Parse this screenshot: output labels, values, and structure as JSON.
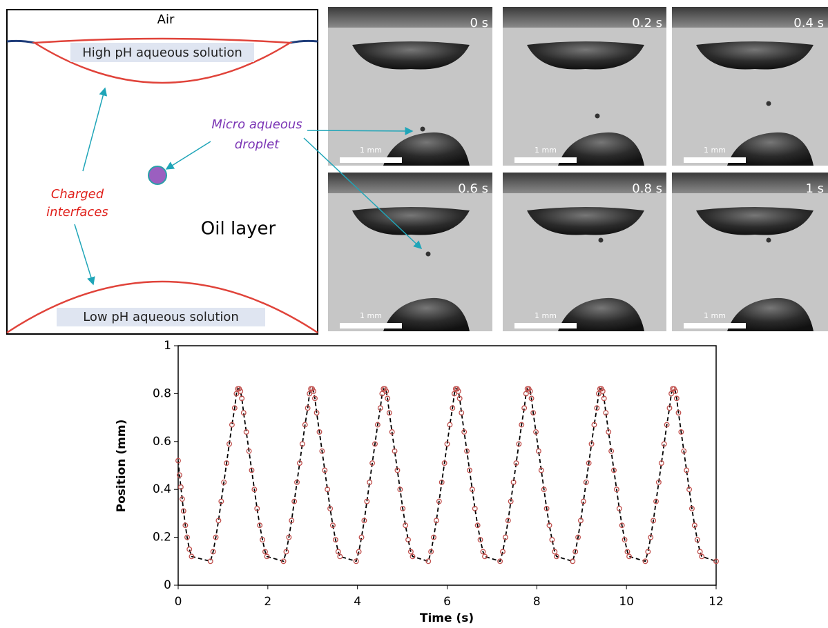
{
  "schematic": {
    "air": "Air",
    "top_solution": "High pH aqueous solution",
    "bottom_solution": "Low pH aqueous solution",
    "charged_label": [
      "Charged",
      "interfaces"
    ],
    "droplet_label": [
      "Micro aqueous",
      "droplet"
    ],
    "oil": "Oil layer"
  },
  "photos": {
    "times": [
      "0 s",
      "0.2 s",
      "0.4 s",
      "0.6 s",
      "0.8 s",
      "1 s"
    ],
    "scale_bar": "1 mm"
  },
  "chart_data": {
    "type": "scatter",
    "xlabel": "Time (s)",
    "ylabel": "Position (mm)",
    "color": "#c0504d",
    "line_color": "#000000",
    "xlim": [
      0,
      12
    ],
    "ylim": [
      0,
      1
    ],
    "xticks": [
      0,
      2,
      4,
      6,
      8,
      10,
      12
    ],
    "yticks": [
      0,
      0.2,
      0.4,
      0.6,
      0.8,
      1
    ],
    "x": [
      0,
      0.03,
      0.06,
      0.09,
      0.12,
      0.16,
      0.2,
      0.25,
      0.3,
      0.72,
      0.78,
      0.84,
      0.9,
      0.96,
      1.02,
      1.08,
      1.14,
      1.2,
      1.26,
      1.3,
      1.33,
      1.36,
      1.39,
      1.42,
      1.46,
      1.52,
      1.58,
      1.64,
      1.7,
      1.76,
      1.82,
      1.88,
      1.94,
      1.98,
      2.35,
      2.41,
      2.47,
      2.53,
      2.59,
      2.65,
      2.71,
      2.77,
      2.83,
      2.89,
      2.93,
      2.96,
      2.99,
      3.02,
      3.05,
      3.09,
      3.15,
      3.21,
      3.27,
      3.33,
      3.39,
      3.45,
      3.51,
      3.57,
      3.61,
      3.97,
      4.03,
      4.09,
      4.15,
      4.21,
      4.27,
      4.33,
      4.39,
      4.45,
      4.51,
      4.55,
      4.58,
      4.61,
      4.64,
      4.67,
      4.71,
      4.77,
      4.83,
      4.89,
      4.95,
      5.01,
      5.07,
      5.13,
      5.19,
      5.23,
      5.58,
      5.64,
      5.7,
      5.76,
      5.82,
      5.88,
      5.94,
      6.0,
      6.06,
      6.12,
      6.16,
      6.19,
      6.22,
      6.25,
      6.28,
      6.32,
      6.38,
      6.44,
      6.5,
      6.56,
      6.62,
      6.68,
      6.74,
      6.8,
      6.84,
      7.18,
      7.24,
      7.3,
      7.36,
      7.42,
      7.48,
      7.54,
      7.6,
      7.66,
      7.72,
      7.76,
      7.79,
      7.82,
      7.85,
      7.88,
      7.92,
      7.98,
      8.04,
      8.1,
      8.16,
      8.22,
      8.28,
      8.34,
      8.4,
      8.44,
      8.8,
      8.86,
      8.92,
      8.98,
      9.04,
      9.1,
      9.16,
      9.22,
      9.28,
      9.34,
      9.38,
      9.41,
      9.44,
      9.47,
      9.5,
      9.54,
      9.6,
      9.66,
      9.72,
      9.78,
      9.84,
      9.9,
      9.96,
      10.02,
      10.06,
      10.42,
      10.48,
      10.54,
      10.6,
      10.66,
      10.72,
      10.78,
      10.84,
      10.9,
      10.96,
      11.0,
      11.03,
      11.06,
      11.09,
      11.12,
      11.16,
      11.22,
      11.28,
      11.34,
      11.4,
      11.46,
      11.52,
      11.58,
      11.64,
      11.68,
      12
    ],
    "values": [
      0.52,
      0.46,
      0.41,
      0.36,
      0.31,
      0.25,
      0.2,
      0.15,
      0.12,
      0.1,
      0.14,
      0.2,
      0.27,
      0.35,
      0.43,
      0.51,
      0.59,
      0.67,
      0.74,
      0.8,
      0.82,
      0.82,
      0.81,
      0.78,
      0.72,
      0.64,
      0.56,
      0.48,
      0.4,
      0.32,
      0.25,
      0.19,
      0.14,
      0.12,
      0.1,
      0.14,
      0.2,
      0.27,
      0.35,
      0.43,
      0.51,
      0.59,
      0.67,
      0.74,
      0.8,
      0.82,
      0.82,
      0.81,
      0.78,
      0.72,
      0.64,
      0.56,
      0.48,
      0.4,
      0.32,
      0.25,
      0.19,
      0.14,
      0.12,
      0.1,
      0.14,
      0.2,
      0.27,
      0.35,
      0.43,
      0.51,
      0.59,
      0.67,
      0.74,
      0.8,
      0.82,
      0.82,
      0.81,
      0.78,
      0.72,
      0.64,
      0.56,
      0.48,
      0.4,
      0.32,
      0.25,
      0.19,
      0.14,
      0.12,
      0.1,
      0.14,
      0.2,
      0.27,
      0.35,
      0.43,
      0.51,
      0.59,
      0.67,
      0.74,
      0.8,
      0.82,
      0.82,
      0.81,
      0.78,
      0.72,
      0.64,
      0.56,
      0.48,
      0.4,
      0.32,
      0.25,
      0.19,
      0.14,
      0.12,
      0.1,
      0.14,
      0.2,
      0.27,
      0.35,
      0.43,
      0.51,
      0.59,
      0.67,
      0.74,
      0.8,
      0.82,
      0.82,
      0.81,
      0.78,
      0.72,
      0.64,
      0.56,
      0.48,
      0.4,
      0.32,
      0.25,
      0.19,
      0.14,
      0.12,
      0.1,
      0.14,
      0.2,
      0.27,
      0.35,
      0.43,
      0.51,
      0.59,
      0.67,
      0.74,
      0.8,
      0.82,
      0.82,
      0.81,
      0.78,
      0.72,
      0.64,
      0.56,
      0.48,
      0.4,
      0.32,
      0.25,
      0.19,
      0.14,
      0.12,
      0.1,
      0.14,
      0.2,
      0.27,
      0.35,
      0.43,
      0.51,
      0.59,
      0.67,
      0.74,
      0.8,
      0.82,
      0.82,
      0.81,
      0.78,
      0.72,
      0.64,
      0.56,
      0.48,
      0.4,
      0.32,
      0.25,
      0.19,
      0.14,
      0.12,
      0.1
    ]
  }
}
